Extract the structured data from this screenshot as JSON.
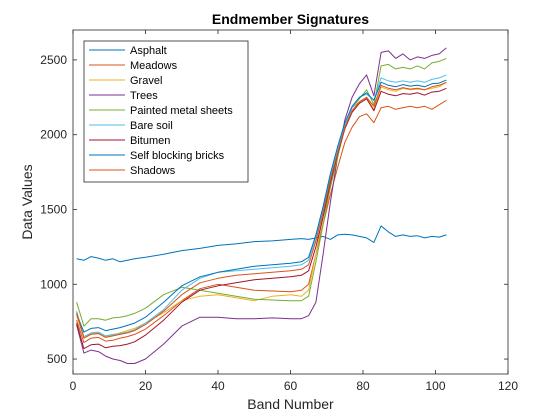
{
  "chart_data": {
    "type": "line",
    "title": "Endmember Signatures",
    "xlabel": "Band Number",
    "ylabel": "Data Values",
    "xlim": [
      0,
      120
    ],
    "ylim": [
      400,
      2700
    ],
    "xticks": [
      0,
      20,
      40,
      60,
      80,
      100,
      120
    ],
    "yticks": [
      500,
      1000,
      1500,
      2000,
      2500
    ],
    "grid": false,
    "legend_position": "top-left",
    "x": [
      1,
      3,
      5,
      7,
      9,
      11,
      13,
      15,
      17,
      20,
      25,
      30,
      35,
      40,
      45,
      50,
      55,
      60,
      63,
      65,
      67,
      69,
      71,
      73,
      75,
      77,
      79,
      81,
      83,
      85,
      87,
      89,
      91,
      93,
      95,
      97,
      99,
      101,
      103
    ],
    "series": [
      {
        "name": "Asphalt",
        "color": "#0072BD",
        "values": [
          1170,
          1160,
          1185,
          1175,
          1160,
          1170,
          1150,
          1160,
          1170,
          1180,
          1200,
          1225,
          1240,
          1260,
          1270,
          1285,
          1290,
          1300,
          1305,
          1300,
          1310,
          1320,
          1300,
          1330,
          1335,
          1330,
          1320,
          1310,
          1280,
          1390,
          1350,
          1320,
          1330,
          1320,
          1325,
          1310,
          1320,
          1315,
          1330
        ]
      },
      {
        "name": "Meadows",
        "color": "#D95319",
        "values": [
          760,
          610,
          640,
          645,
          620,
          625,
          640,
          650,
          665,
          700,
          790,
          890,
          970,
          1000,
          980,
          960,
          955,
          950,
          960,
          1000,
          1200,
          1400,
          1600,
          1780,
          1950,
          2050,
          2120,
          2140,
          2080,
          2180,
          2190,
          2170,
          2180,
          2190,
          2180,
          2190,
          2170,
          2200,
          2230
        ]
      },
      {
        "name": "Gravel",
        "color": "#EDB120",
        "values": [
          790,
          640,
          670,
          675,
          650,
          660,
          675,
          690,
          705,
          740,
          810,
          890,
          920,
          930,
          910,
          890,
          920,
          930,
          920,
          960,
          1200,
          1450,
          1650,
          1850,
          2050,
          2180,
          2220,
          2250,
          2170,
          2320,
          2300,
          2290,
          2310,
          2300,
          2305,
          2300,
          2310,
          2320,
          2350
        ]
      },
      {
        "name": "Trees",
        "color": "#7E2F8E",
        "values": [
          730,
          540,
          560,
          550,
          520,
          500,
          490,
          470,
          470,
          500,
          600,
          720,
          780,
          780,
          770,
          770,
          775,
          770,
          770,
          790,
          880,
          1200,
          1550,
          1850,
          2100,
          2250,
          2340,
          2400,
          2260,
          2550,
          2560,
          2510,
          2540,
          2500,
          2520,
          2510,
          2530,
          2540,
          2580
        ]
      },
      {
        "name": "Painted metal sheets",
        "color": "#77AC30",
        "values": [
          880,
          720,
          770,
          770,
          760,
          775,
          780,
          790,
          805,
          840,
          930,
          980,
          960,
          940,
          920,
          900,
          895,
          890,
          890,
          920,
          1150,
          1400,
          1650,
          1850,
          2050,
          2180,
          2240,
          2300,
          2200,
          2460,
          2470,
          2440,
          2450,
          2440,
          2460,
          2440,
          2480,
          2490,
          2510
        ]
      },
      {
        "name": "Bare soil",
        "color": "#4DBEEE",
        "values": [
          820,
          650,
          675,
          680,
          655,
          665,
          670,
          680,
          695,
          740,
          830,
          960,
          1040,
          1080,
          1090,
          1100,
          1110,
          1120,
          1130,
          1160,
          1310,
          1500,
          1720,
          1900,
          2060,
          2180,
          2250,
          2270,
          2230,
          2380,
          2360,
          2350,
          2360,
          2350,
          2360,
          2350,
          2370,
          2380,
          2400
        ]
      },
      {
        "name": "Bitumen",
        "color": "#A2142F",
        "values": [
          740,
          570,
          595,
          600,
          575,
          585,
          590,
          600,
          615,
          660,
          760,
          880,
          960,
          990,
          1010,
          1030,
          1040,
          1050,
          1060,
          1090,
          1250,
          1450,
          1680,
          1870,
          2040,
          2150,
          2210,
          2240,
          2160,
          2290,
          2270,
          2260,
          2275,
          2270,
          2280,
          2265,
          2285,
          2290,
          2310
        ]
      },
      {
        "name": "Self blocking bricks",
        "color": "#0072BD",
        "values": [
          800,
          680,
          705,
          710,
          690,
          700,
          710,
          725,
          740,
          780,
          880,
          990,
          1050,
          1080,
          1100,
          1120,
          1130,
          1140,
          1150,
          1180,
          1330,
          1520,
          1740,
          1920,
          2080,
          2190,
          2250,
          2280,
          2230,
          2350,
          2330,
          2320,
          2335,
          2325,
          2330,
          2320,
          2340,
          2345,
          2365
        ]
      },
      {
        "name": "Shadows",
        "color": "#D95319",
        "values": [
          810,
          640,
          665,
          670,
          645,
          655,
          665,
          675,
          690,
          730,
          820,
          930,
          1010,
          1040,
          1060,
          1070,
          1080,
          1090,
          1100,
          1130,
          1290,
          1480,
          1700,
          1880,
          2050,
          2160,
          2220,
          2250,
          2190,
          2330,
          2310,
          2300,
          2315,
          2305,
          2310,
          2300,
          2320,
          2330,
          2350
        ]
      }
    ]
  }
}
